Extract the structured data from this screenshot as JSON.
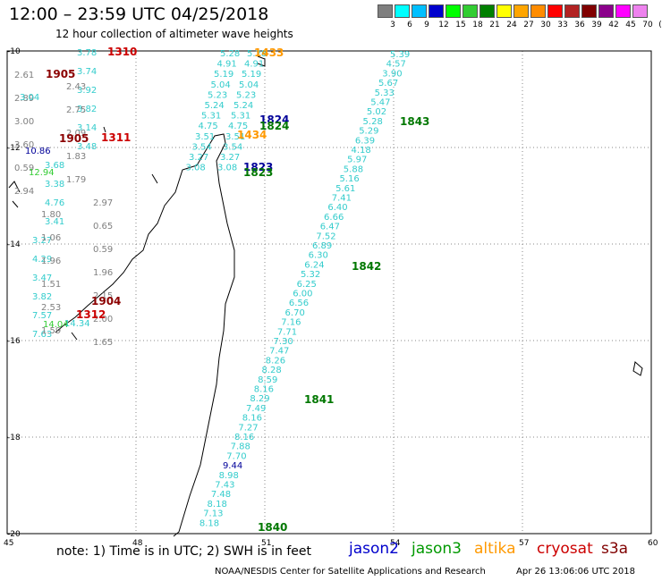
{
  "title": "12:00 – 23:59 UTC 04/25/2018",
  "subtitle": "12 hour collection of altimeter wave heights",
  "color_scale": {
    "labels": [
      "3",
      "6",
      "9",
      "12",
      "15",
      "18",
      "21",
      "24",
      "27",
      "30",
      "33",
      "36",
      "39",
      "42",
      "45",
      "70",
      "(ft)"
    ],
    "colors": [
      "#7f7f7f",
      "#00ffff",
      "#00bfff",
      "#0000cd",
      "#00ff00",
      "#32cd32",
      "#008000",
      "#ffff00",
      "#ffa500",
      "#ff8c00",
      "#ff0000",
      "#b22222",
      "#800000",
      "#8b008b",
      "#ff00ff",
      "#ee82ee",
      "#000000"
    ]
  },
  "axes": {
    "lat_labels": [
      "-10",
      "-12",
      "-14",
      "-16",
      "-18",
      "-20"
    ],
    "lon_labels": [
      "45",
      "48",
      "51",
      "54",
      "57",
      "60"
    ]
  },
  "passes": [
    {
      "id": "cryosat-1310",
      "label": "1310",
      "color": "#cc0000"
    },
    {
      "id": "cryosat-1311",
      "label": "1311",
      "color": "#cc0000"
    },
    {
      "id": "cryosat-1312",
      "label": "1312",
      "color": "#cc0000"
    },
    {
      "id": "s3a-1904",
      "label": "1904",
      "color": "#8b0000"
    },
    {
      "id": "s3a-1905a",
      "label": "1905",
      "color": "#8b0000"
    },
    {
      "id": "s3a-1905b",
      "label": "1905",
      "color": "#8b0000"
    },
    {
      "id": "jason2-1824",
      "label": "1824",
      "color": "#000099"
    },
    {
      "id": "jason2-1823",
      "label": "1823",
      "color": "#000099"
    },
    {
      "id": "jason3-1824",
      "label": "1824",
      "color": "#007700"
    },
    {
      "id": "jason3-1823",
      "label": "1823",
      "color": "#007700"
    },
    {
      "id": "jason3-1843",
      "label": "1843",
      "color": "#007700"
    },
    {
      "id": "jason3-1842",
      "label": "1842",
      "color": "#007700"
    },
    {
      "id": "jason3-1841",
      "label": "1841",
      "color": "#007700"
    },
    {
      "id": "jason3-1840",
      "label": "1840",
      "color": "#007700"
    },
    {
      "id": "altika-1433",
      "label": "1433",
      "color": "#ff9900"
    },
    {
      "id": "altika-1434",
      "label": "1434",
      "color": "#ff9900"
    }
  ],
  "tracks": {
    "jason3_east": {
      "color": "#33cccc",
      "values": [
        "5.39",
        "4.57",
        "3.90",
        "5.67",
        "5.33",
        "5.47",
        "5.02",
        "5.28",
        "5.29",
        "6.39",
        "4.18",
        "5.97",
        "5.88",
        "5.16",
        "5.61",
        "7.41",
        "6.40",
        "6.66",
        "6.47",
        "7.52",
        "6.89",
        "6.30",
        "6.24",
        "5.32",
        "6.25",
        "6.00",
        "6.56",
        "6.70",
        "7.16",
        "7.71",
        "7.30",
        "7.47",
        "8.26",
        "8.28",
        "8.59",
        "8.16",
        "8.29",
        "7.49",
        "8.16",
        "7.27",
        "8.16",
        "7.88",
        "7.70",
        "9.44",
        "8.98",
        "7.43",
        "7.48",
        "8.18",
        "7.13",
        "8.18"
      ],
      "dark_index": [
        43
      ]
    },
    "jason_north": {
      "color": "#33cccc",
      "values": [
        "5.28",
        "4.91",
        "5.19",
        "5.04",
        "5.23",
        "5.24",
        "5.31",
        "4.75",
        "3.51",
        "3.54",
        "3.27",
        "3.08"
      ]
    },
    "cryosat_west": {
      "color": "#33cccc",
      "values": [
        "3.78",
        "3.74",
        "3.92",
        "3.82",
        "3.14",
        "3.48",
        "3.68",
        "3.38",
        "4.76",
        "3.41",
        "3.27",
        "4.29",
        "3.47",
        "3.82",
        "7.57",
        "7.63"
      ]
    },
    "s3a_west": {
      "color": "#808080",
      "values": [
        "2.61",
        "2.43",
        "2.89",
        "2.75",
        "3.00",
        "2.09",
        "3.60",
        "1.83",
        "0.59",
        "1.79",
        "2.94",
        "2.97",
        "1.80",
        "0.65",
        "1.06",
        "0.59",
        "1.96",
        "1.96",
        "1.51",
        "2.15",
        "2.53",
        "2.00",
        "1.59",
        "1.65"
      ]
    },
    "other_west": [
      {
        "v": "10.86",
        "c": "#000099"
      },
      {
        "v": "12.94",
        "c": "#33cc33"
      },
      {
        "v": "14.04",
        "c": "#33cc33"
      },
      {
        "v": "14.34",
        "c": "#33cccc"
      },
      {
        "v": "3.04",
        "c": "#33cccc"
      }
    ]
  },
  "note": "note: 1) Time is in UTC; 2) SWH is in feet",
  "satellites": [
    {
      "name": "jason2",
      "color": "#0000cc"
    },
    {
      "name": "jason3",
      "color": "#009900"
    },
    {
      "name": "altika",
      "color": "#ff9900"
    },
    {
      "name": "cryosat",
      "color": "#cc0000"
    },
    {
      "name": "s3a",
      "color": "#800000"
    }
  ],
  "credit": "NOAA/NESDIS Center for Satellite Applications and Research",
  "timestamp": "Apr 26 13:06:06 UTC 2018"
}
